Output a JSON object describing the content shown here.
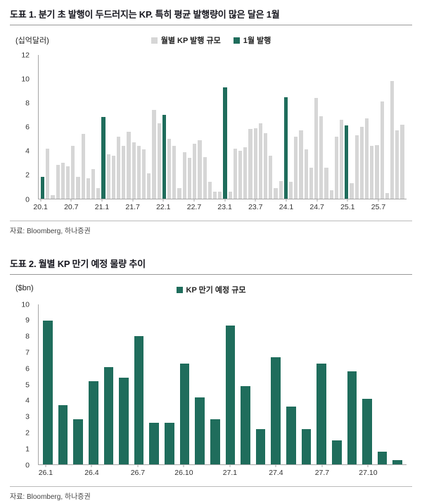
{
  "page": {
    "background": "#ffffff"
  },
  "chart_data": [
    {
      "type": "bar",
      "title": "도표 1. 분기 초 발행이 두드러지는 KP. 특히 평균 발행량이 많은 달은 1월",
      "ylabel": "(십억달러)",
      "source": "자료: Bloomberg, 하나증권",
      "ylim": [
        0,
        12
      ],
      "yticks": [
        0,
        2,
        4,
        6,
        8,
        10,
        12
      ],
      "grid": false,
      "legend_position": "top-center",
      "legend": [
        {
          "label": "월별 KP 발행 규모",
          "color": "#d6d6d6"
        },
        {
          "label": "1월 발행",
          "color": "#1f6d5c"
        }
      ],
      "colors": {
        "bar": "#d6d6d6",
        "highlight": "#1f6d5c",
        "axis": "#a6a6a6"
      },
      "categories": [
        "20.1",
        "20.2",
        "20.3",
        "20.4",
        "20.5",
        "20.6",
        "20.7",
        "20.8",
        "20.9",
        "20.10",
        "20.11",
        "20.12",
        "21.1",
        "21.2",
        "21.3",
        "21.4",
        "21.5",
        "21.6",
        "21.7",
        "21.8",
        "21.9",
        "21.10",
        "21.11",
        "21.12",
        "22.1",
        "22.2",
        "22.3",
        "22.4",
        "22.5",
        "22.6",
        "22.7",
        "22.8",
        "22.9",
        "22.10",
        "22.11",
        "22.12",
        "23.1",
        "23.2",
        "23.3",
        "23.4",
        "23.5",
        "23.6",
        "23.7",
        "23.8",
        "23.9",
        "23.10",
        "23.11",
        "23.12",
        "24.1",
        "24.2",
        "24.3",
        "24.4",
        "24.5",
        "24.6",
        "24.7",
        "24.8",
        "24.9",
        "24.10",
        "24.11",
        "24.12",
        "25.1",
        "25.2",
        "25.3",
        "25.4",
        "25.5",
        "25.6",
        "25.7",
        "25.8",
        "25.9",
        "25.10",
        "25.11",
        "25.12"
      ],
      "values": [
        1.8,
        4.2,
        0.3,
        2.8,
        3.0,
        2.7,
        4.4,
        1.8,
        5.4,
        1.7,
        2.5,
        0.9,
        6.8,
        3.7,
        3.6,
        5.2,
        4.4,
        5.6,
        4.7,
        4.4,
        4.1,
        2.1,
        7.4,
        6.3,
        7.0,
        5.0,
        4.4,
        0.9,
        3.9,
        3.4,
        4.6,
        4.9,
        3.5,
        1.4,
        0.6,
        0.6,
        9.3,
        0.6,
        4.2,
        4.0,
        4.3,
        5.8,
        5.9,
        6.3,
        5.5,
        3.6,
        0.9,
        1.5,
        8.5,
        1.4,
        5.2,
        5.7,
        4.1,
        2.6,
        8.4,
        6.9,
        2.6,
        0.7,
        5.2,
        6.6,
        6.1,
        1.3,
        5.3,
        6.0,
        6.7,
        4.4,
        4.5,
        8.1,
        0.5,
        9.8,
        5.7,
        6.2
      ],
      "highlight_indices": [
        0,
        12,
        24,
        36,
        48,
        60
      ],
      "xticks": [
        {
          "index": 0,
          "label": "20.1"
        },
        {
          "index": 6,
          "label": "20.7"
        },
        {
          "index": 12,
          "label": "21.1"
        },
        {
          "index": 18,
          "label": "21.7"
        },
        {
          "index": 24,
          "label": "22.1"
        },
        {
          "index": 30,
          "label": "22.7"
        },
        {
          "index": 36,
          "label": "23.1"
        },
        {
          "index": 42,
          "label": "23.7"
        },
        {
          "index": 48,
          "label": "24.1"
        },
        {
          "index": 54,
          "label": "24.7"
        },
        {
          "index": 60,
          "label": "25.1"
        },
        {
          "index": 66,
          "label": "25.7"
        }
      ]
    },
    {
      "type": "bar",
      "title": "도표 2. 월별 KP 만기 예정 물량 추이",
      "ylabel": "($bn)",
      "source": "자료: Bloomberg, 하나증권",
      "ylim": [
        0,
        10
      ],
      "yticks": [
        0,
        1,
        2,
        3,
        4,
        5,
        6,
        7,
        8,
        9,
        10
      ],
      "grid": false,
      "legend_position": "top-center",
      "legend": [
        {
          "label": "KP 만기 예정 규모",
          "color": "#1f6d5c"
        }
      ],
      "colors": {
        "bar": "#1f6d5c",
        "highlight": "#1f6d5c",
        "axis": "#a6a6a6"
      },
      "categories": [
        "26.1",
        "26.2",
        "26.3",
        "26.4",
        "26.5",
        "26.6",
        "26.7",
        "26.8",
        "26.9",
        "26.10",
        "26.11",
        "26.12",
        "27.1",
        "27.2",
        "27.3",
        "27.4",
        "27.5",
        "27.6",
        "27.7",
        "27.8",
        "27.9",
        "27.10",
        "27.11",
        "27.12"
      ],
      "values": [
        9.0,
        3.7,
        2.8,
        5.2,
        6.1,
        5.4,
        8.0,
        2.6,
        2.6,
        6.3,
        4.2,
        2.8,
        8.7,
        4.9,
        2.2,
        6.7,
        3.6,
        2.2,
        6.3,
        1.5,
        5.8,
        4.1,
        0.8,
        0.25
      ],
      "highlight_indices": [],
      "xticks": [
        {
          "index": 0,
          "label": "26.1"
        },
        {
          "index": 3,
          "label": "26.4"
        },
        {
          "index": 6,
          "label": "26.7"
        },
        {
          "index": 9,
          "label": "26.10"
        },
        {
          "index": 12,
          "label": "27.1"
        },
        {
          "index": 15,
          "label": "27.4"
        },
        {
          "index": 18,
          "label": "27.7"
        },
        {
          "index": 21,
          "label": "27.10"
        }
      ]
    }
  ]
}
